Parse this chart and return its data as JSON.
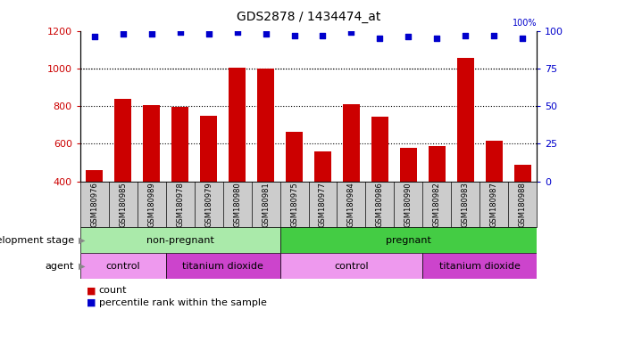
{
  "title": "GDS2878 / 1434474_at",
  "samples": [
    "GSM180976",
    "GSM180985",
    "GSM180989",
    "GSM180978",
    "GSM180979",
    "GSM180980",
    "GSM180981",
    "GSM180975",
    "GSM180977",
    "GSM180984",
    "GSM180986",
    "GSM180990",
    "GSM180982",
    "GSM180983",
    "GSM180987",
    "GSM180988"
  ],
  "bar_values": [
    460,
    840,
    805,
    795,
    750,
    1005,
    1000,
    665,
    560,
    810,
    745,
    580,
    585,
    1055,
    615,
    490
  ],
  "percentile_values": [
    96,
    98,
    98,
    99,
    98,
    99,
    98,
    97,
    97,
    99,
    95,
    96,
    95,
    97,
    97,
    95
  ],
  "bar_color": "#cc0000",
  "percentile_color": "#0000cc",
  "ylim_left": [
    400,
    1200
  ],
  "ylim_right": [
    0,
    100
  ],
  "yticks_left": [
    400,
    600,
    800,
    1000,
    1200
  ],
  "yticks_right": [
    0,
    25,
    50,
    75,
    100
  ],
  "grid_values": [
    600,
    800,
    1000
  ],
  "development_stage_groups": [
    {
      "label": "non-pregnant",
      "start": 0,
      "end": 7,
      "color": "#aaeaaa"
    },
    {
      "label": "pregnant",
      "start": 7,
      "end": 16,
      "color": "#44cc44"
    }
  ],
  "agent_groups": [
    {
      "label": "control",
      "start": 0,
      "end": 3,
      "color": "#ee99ee"
    },
    {
      "label": "titanium dioxide",
      "start": 3,
      "end": 7,
      "color": "#cc44cc"
    },
    {
      "label": "control",
      "start": 7,
      "end": 12,
      "color": "#ee99ee"
    },
    {
      "label": "titanium dioxide",
      "start": 12,
      "end": 16,
      "color": "#cc44cc"
    }
  ],
  "legend_items": [
    {
      "label": "count",
      "color": "#cc0000"
    },
    {
      "label": "percentile rank within the sample",
      "color": "#0000cc"
    }
  ],
  "tick_label_color_left": "#cc0000",
  "tick_label_color_right": "#0000cc",
  "xtick_bg_color": "#cccccc"
}
